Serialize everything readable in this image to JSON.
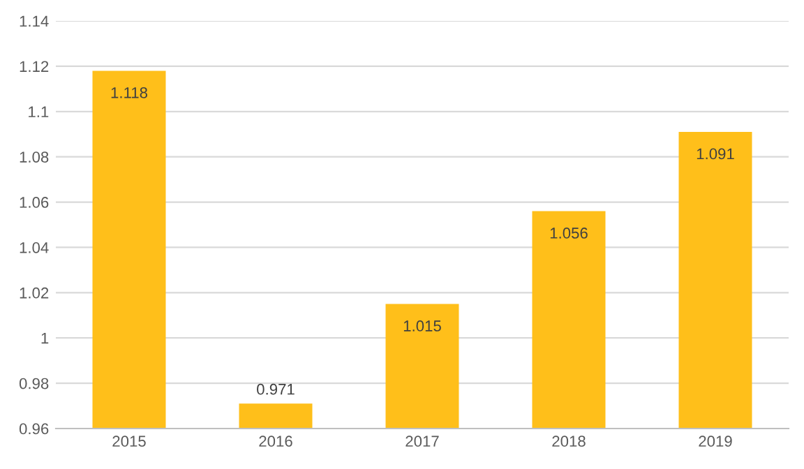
{
  "chart_data": {
    "type": "bar",
    "categories": [
      "2015",
      "2016",
      "2017",
      "2018",
      "2019"
    ],
    "values": [
      1.118,
      0.971,
      1.015,
      1.056,
      1.091
    ],
    "color": "#ffbf1a",
    "ylim": [
      0.96,
      1.14
    ],
    "yticks": [
      0.96,
      0.98,
      1,
      1.02,
      1.04,
      1.06,
      1.08,
      1.1,
      1.12,
      1.14
    ],
    "grid": "y",
    "data_labels": true
  }
}
